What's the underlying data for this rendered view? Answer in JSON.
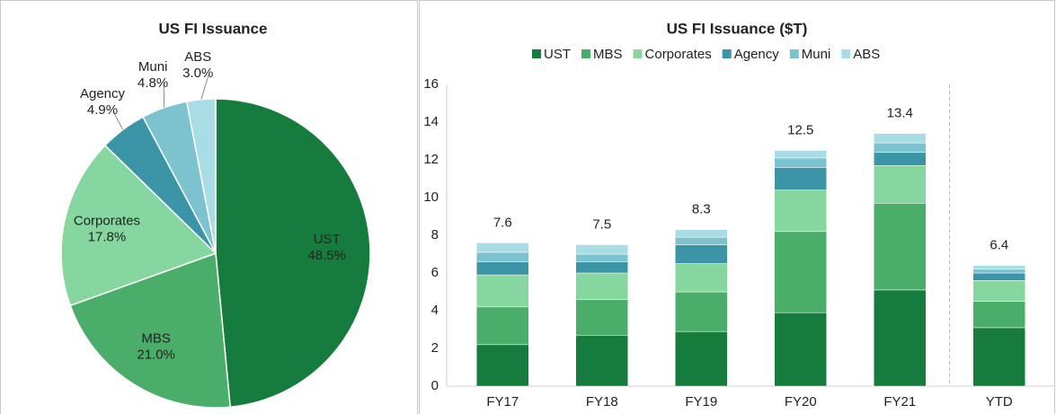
{
  "chart_data": [
    {
      "type": "pie",
      "title": "US FI Issuance",
      "categories": [
        "UST",
        "MBS",
        "Corporates",
        "Agency",
        "Muni",
        "ABS"
      ],
      "values": [
        48.5,
        21.0,
        17.8,
        4.9,
        4.8,
        3.0
      ],
      "value_labels": [
        "48.5%",
        "21.0%",
        "17.8%",
        "4.9%",
        "4.8%",
        "3.0%"
      ],
      "colors": [
        "#167c3e",
        "#4aad69",
        "#86d69f",
        "#3b95a6",
        "#7cc3cf",
        "#a9dde5"
      ]
    },
    {
      "type": "stacked_bar",
      "title": "US FI Issuance ($T)",
      "categories": [
        "FY17",
        "FY18",
        "FY19",
        "FY20",
        "FY21",
        "YTD"
      ],
      "series": [
        {
          "name": "UST",
          "color": "#167c3e",
          "values": [
            2.2,
            2.7,
            2.9,
            3.9,
            5.1,
            3.1
          ]
        },
        {
          "name": "MBS",
          "color": "#4aad69",
          "values": [
            2.0,
            1.9,
            2.1,
            4.3,
            4.6,
            1.4
          ]
        },
        {
          "name": "Corporates",
          "color": "#86d69f",
          "values": [
            1.7,
            1.4,
            1.5,
            2.2,
            2.0,
            1.1
          ]
        },
        {
          "name": "Agency",
          "color": "#3b95a6",
          "values": [
            0.7,
            0.6,
            1.0,
            1.2,
            0.7,
            0.4
          ]
        },
        {
          "name": "Muni",
          "color": "#7cc3cf",
          "values": [
            0.5,
            0.4,
            0.4,
            0.5,
            0.5,
            0.2
          ]
        },
        {
          "name": "ABS",
          "color": "#a9dde5",
          "values": [
            0.5,
            0.5,
            0.4,
            0.4,
            0.5,
            0.2
          ]
        }
      ],
      "totals": [
        7.6,
        7.5,
        8.3,
        12.5,
        13.4,
        6.4
      ],
      "ylim": [
        0,
        16
      ],
      "yticks": [
        0,
        2,
        4,
        6,
        8,
        10,
        12,
        14,
        16
      ],
      "legend": "top"
    }
  ]
}
